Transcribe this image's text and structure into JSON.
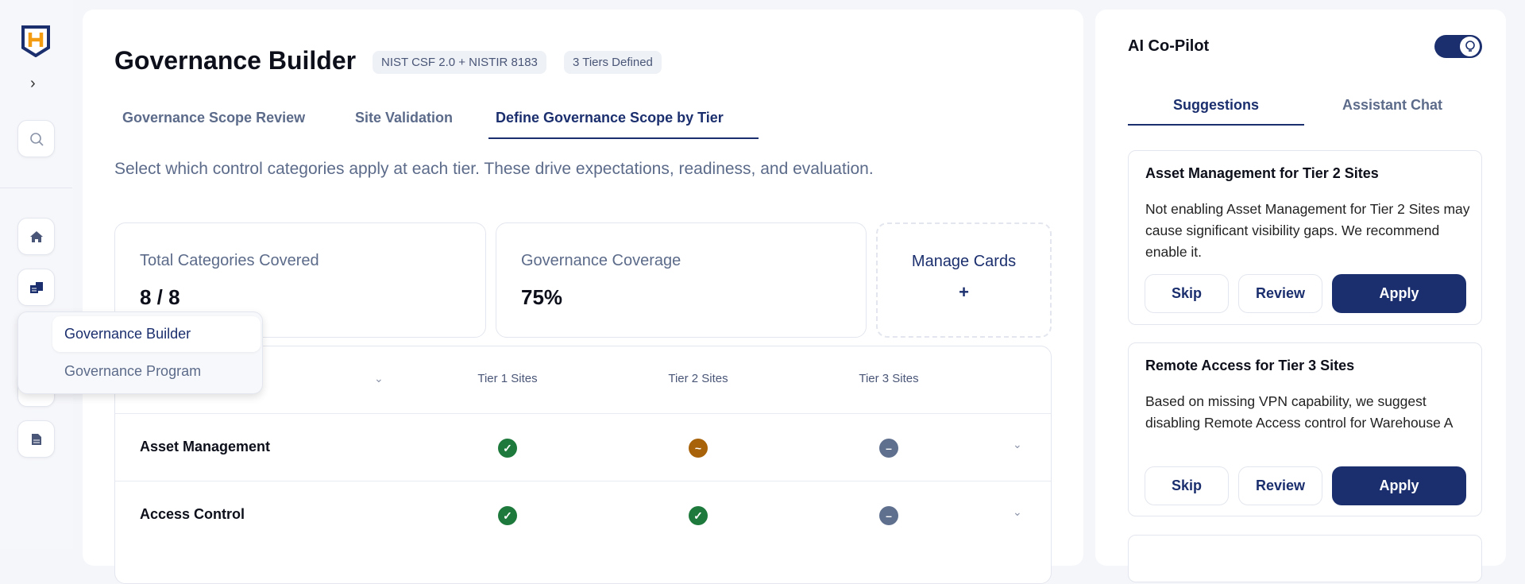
{
  "sidebar": {
    "logo_letter": "H",
    "icons": [
      "chevron-right-icon",
      "search-icon",
      "home-icon",
      "documents-icon",
      "settings-icon",
      "file-icon"
    ]
  },
  "nav_popup": {
    "items": [
      {
        "label": "Governance Builder",
        "active": true
      },
      {
        "label": "Governance Program",
        "active": false
      }
    ]
  },
  "header": {
    "title": "Governance Builder",
    "badges": [
      "NIST CSF 2.0 + NISTIR 8183",
      "3 Tiers Defined"
    ]
  },
  "tabs": [
    {
      "label": "Governance Scope Review"
    },
    {
      "label": "Site Validation"
    },
    {
      "label": "Define Governance Scope by Tier",
      "active": true
    }
  ],
  "description": "Select which control categories apply at each tier. These drive expectations, readiness, and evaluation.",
  "cards": [
    {
      "label": "Total Categories Covered",
      "value": "8 / 8"
    },
    {
      "label": "Governance Coverage",
      "value": "75%"
    }
  ],
  "manage_cards": {
    "label": "Manage Cards",
    "icon": "+"
  },
  "table": {
    "columns": [
      "Tier 1 Sites",
      "Tier 2 Sites",
      "Tier 3 Sites"
    ],
    "rows": [
      {
        "name": "Asset Management",
        "status": [
          "enabled",
          "partial",
          "disabled"
        ]
      },
      {
        "name": "Access Control",
        "status": [
          "enabled",
          "enabled",
          "disabled"
        ]
      }
    ]
  },
  "status_colors": {
    "enabled": "#1e7a3c",
    "partial": "#a8630a",
    "disabled": "#5f6f8e"
  },
  "copilot": {
    "title": "AI Co-Pilot",
    "toggle_on": true,
    "tabs": [
      {
        "label": "Suggestions",
        "active": true
      },
      {
        "label": "Assistant Chat"
      }
    ],
    "suggestions": [
      {
        "title": "Asset Management for Tier 2 Sites",
        "body": "Not enabling Asset Management for Tier 2 Sites may cause significant visibility gaps. We recommend enable it.",
        "skip": "Skip",
        "review": "Review",
        "apply": "Apply"
      },
      {
        "title": "Remote Access for Tier 3 Sites",
        "body": "Based on missing VPN capability, we suggest disabling Remote Access control for Warehouse A",
        "skip": "Skip",
        "review": "Review",
        "apply": "Apply"
      }
    ]
  },
  "accent": "#1b2f6e"
}
